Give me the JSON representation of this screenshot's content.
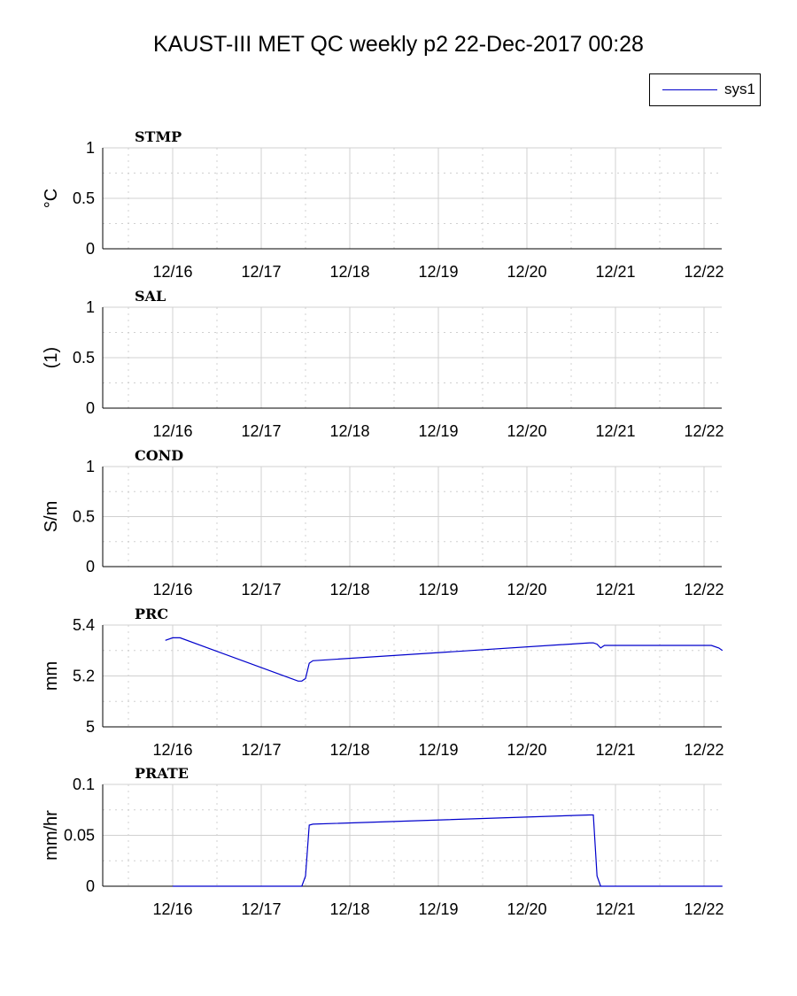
{
  "title": "KAUST-III MET QC weekly p2 22-Dec-2017 00:28",
  "legend": {
    "label": "sys1",
    "color": "#0000cc"
  },
  "colors": {
    "line": "#0000cc",
    "grid": "#d0d0d0",
    "axis": "#000000"
  },
  "chart_data": [
    {
      "type": "line",
      "title": "STMP",
      "ylabel": "°C",
      "xlabel": "",
      "x_ticks": [
        "12/16",
        "12/17",
        "12/18",
        "12/19",
        "12/20",
        "12/21",
        "12/22"
      ],
      "ylim": [
        0,
        1
      ],
      "y_ticks": [
        "0",
        "0.5",
        "1"
      ],
      "grid": true,
      "series": [
        {
          "name": "sys1",
          "x": [],
          "y": []
        }
      ]
    },
    {
      "type": "line",
      "title": "SAL",
      "ylabel": "(1)",
      "xlabel": "",
      "x_ticks": [
        "12/16",
        "12/17",
        "12/18",
        "12/19",
        "12/20",
        "12/21",
        "12/22"
      ],
      "ylim": [
        0,
        1
      ],
      "y_ticks": [
        "0",
        "0.5",
        "1"
      ],
      "grid": true,
      "series": [
        {
          "name": "sys1",
          "x": [],
          "y": []
        }
      ]
    },
    {
      "type": "line",
      "title": "COND",
      "ylabel": "S/m",
      "xlabel": "",
      "x_ticks": [
        "12/16",
        "12/17",
        "12/18",
        "12/19",
        "12/20",
        "12/21",
        "12/22"
      ],
      "ylim": [
        0,
        1
      ],
      "y_ticks": [
        "0",
        "0.5",
        "1"
      ],
      "grid": true,
      "series": [
        {
          "name": "sys1",
          "x": [],
          "y": []
        }
      ]
    },
    {
      "type": "line",
      "title": "PRC",
      "ylabel": "mm",
      "xlabel": "",
      "x_ticks": [
        "12/16",
        "12/17",
        "12/18",
        "12/19",
        "12/20",
        "12/21",
        "12/22"
      ],
      "ylim": [
        5,
        5.4
      ],
      "y_ticks": [
        "5",
        "5.2",
        "5.4"
      ],
      "grid": true,
      "series": [
        {
          "name": "sys1",
          "x": [
            "2017-12-15 22:00",
            "2017-12-16 00:00",
            "2017-12-16 02:00",
            "2017-12-17 10:00",
            "2017-12-17 11:00",
            "2017-12-17 12:00",
            "2017-12-17 13:00",
            "2017-12-17 14:00",
            "2017-12-20 17:00",
            "2017-12-20 18:00",
            "2017-12-20 19:00",
            "2017-12-20 20:00",
            "2017-12-20 21:00",
            "2017-12-22 02:00",
            "2017-12-22 04:00",
            "2017-12-22 05:00"
          ],
          "y": [
            5.34,
            5.35,
            5.35,
            5.18,
            5.18,
            5.19,
            5.25,
            5.26,
            5.33,
            5.33,
            5.325,
            5.31,
            5.32,
            5.32,
            5.31,
            5.3
          ]
        }
      ]
    },
    {
      "type": "line",
      "title": "PRATE",
      "ylabel": "mm/hr",
      "xlabel": "",
      "x_ticks": [
        "12/16",
        "12/17",
        "12/18",
        "12/19",
        "12/20",
        "12/21",
        "12/22"
      ],
      "ylim": [
        0,
        0.1
      ],
      "y_ticks": [
        "0",
        "0.05",
        "0.1"
      ],
      "grid": true,
      "series": [
        {
          "name": "sys1",
          "x": [
            "2017-12-16 00:00",
            "2017-12-17 11:00",
            "2017-12-17 12:00",
            "2017-12-17 13:00",
            "2017-12-17 14:00",
            "2017-12-20 17:00",
            "2017-12-20 18:00",
            "2017-12-20 19:00",
            "2017-12-20 20:00",
            "2017-12-22 05:00"
          ],
          "y": [
            0,
            0,
            0.01,
            0.06,
            0.061,
            0.07,
            0.07,
            0.01,
            0,
            0
          ]
        }
      ]
    }
  ]
}
